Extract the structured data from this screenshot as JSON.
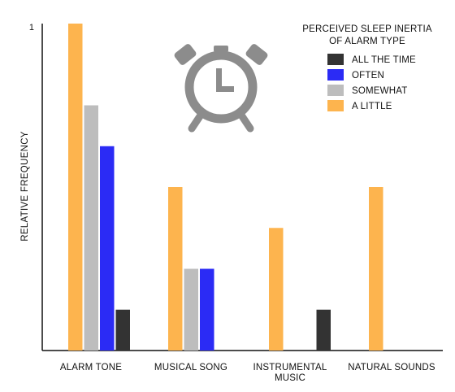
{
  "chart_data": {
    "type": "bar",
    "title": "",
    "xlabel": "",
    "ylabel": "RELATIVE  FREQUENCY",
    "ylim": [
      0,
      1
    ],
    "yticks": [
      "1"
    ],
    "categories": [
      "ALARM TONE",
      "MUSICAL SONG",
      "INSTRUMENTAL MUSIC",
      "NATURAL SOUNDS"
    ],
    "category_lines": [
      [
        "ALARM TONE"
      ],
      [
        "MUSICAL SONG"
      ],
      [
        "INSTRUMENTAL",
        "MUSIC"
      ],
      [
        "NATURAL SOUNDS"
      ]
    ],
    "legend": {
      "title_lines": [
        "PERCEIVED SLEEP INERTIA",
        "OF ALARM TYPE"
      ],
      "placement": "top-right"
    },
    "series": [
      {
        "name": "A LITTLE",
        "color": "#FDB44E",
        "values": [
          1.0,
          0.5,
          0.375,
          0.5
        ]
      },
      {
        "name": "SOMEWHAT",
        "color": "#BDBDBD",
        "values": [
          0.75,
          0.25,
          0,
          0
        ]
      },
      {
        "name": "OFTEN",
        "color": "#2B2BF5",
        "values": [
          0.625,
          0.25,
          0,
          0
        ]
      },
      {
        "name": "ALL THE TIME",
        "color": "#333333",
        "values": [
          0.125,
          0,
          0.125,
          0
        ]
      }
    ],
    "legend_order": [
      "ALL THE TIME",
      "OFTEN",
      "SOMEWHAT",
      "A LITTLE"
    ],
    "grid": false,
    "icon": "alarm-clock-icon",
    "icon_color": "#8C8C8C"
  }
}
